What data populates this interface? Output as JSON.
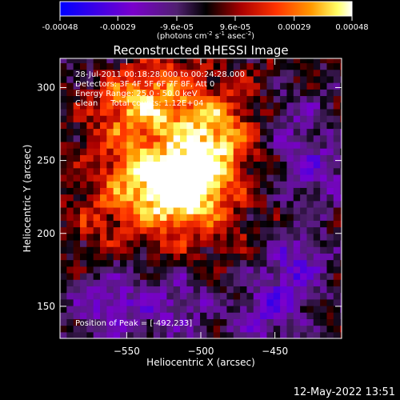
{
  "colorbar": {
    "tick_labels": [
      "-0.00048",
      "-0.00029",
      "-9.6e-05",
      "9.6e-05",
      "0.00029",
      "0.00048"
    ],
    "tick_values": [
      -0.00048,
      -0.00029,
      -9.6e-05,
      9.6e-05,
      0.00029,
      0.00048
    ],
    "range": [
      -0.00048,
      0.00048
    ],
    "units_parts": [
      "(photons cm",
      "-2",
      " s",
      "-1",
      " asec",
      "-2",
      ")"
    ]
  },
  "chart_data": {
    "type": "heatmap",
    "title": "Reconstructed RHESSI Image",
    "xlabel": "Heliocentric X (arcsec)",
    "ylabel": "Heliocentric Y (arcsec)",
    "xlim": [
      -595,
      -405
    ],
    "ylim": [
      128,
      320
    ],
    "x_ticks": [
      -550,
      -500,
      -450
    ],
    "x_tick_labels": [
      "−550",
      "−500",
      "−450"
    ],
    "y_ticks": [
      150,
      200,
      250,
      300
    ],
    "y_tick_labels": [
      "150",
      "200",
      "250",
      "300"
    ],
    "annotations": [
      "28-Jul-2011 00:18:28.000 to 00:24:28.000",
      "Detectors: 3F 4F 5F 6F 7F 8F, Att 0",
      "Energy Range: 25.0 - 50.0 keV",
      "Clean     Total counts: 1.12E+04"
    ],
    "peak_label": "Position of Peak = [-492,233]",
    "peak": [
      -492,
      233
    ],
    "colormap": [
      "#0000ff",
      "#6600cc",
      "#5a2a9c",
      "#000000",
      "#aa0000",
      "#ff3300",
      "#ff9900",
      "#ffff66",
      "#ffffff"
    ],
    "emission_sources": [
      {
        "x": -505,
        "y": 233,
        "value": 0.00044
      },
      {
        "x": -528,
        "y": 228,
        "value": 0.0003
      },
      {
        "x": -552,
        "y": 240,
        "value": 0.0002
      },
      {
        "x": -500,
        "y": 270,
        "value": 0.00026
      },
      {
        "x": -540,
        "y": 280,
        "value": 0.00022
      },
      {
        "x": -560,
        "y": 292,
        "value": 0.00018
      },
      {
        "x": -522,
        "y": 300,
        "value": 0.00016
      },
      {
        "x": -485,
        "y": 262,
        "value": 0.00014
      },
      {
        "x": -570,
        "y": 205,
        "value": 0.00012
      },
      {
        "x": -520,
        "y": 205,
        "value": 0.00011
      },
      {
        "x": -478,
        "y": 190,
        "value": 7e-05
      },
      {
        "x": -460,
        "y": 295,
        "value": 6e-05
      }
    ],
    "negative_sources": [
      {
        "x": -440,
        "y": 175,
        "value": -0.00024
      },
      {
        "x": -425,
        "y": 240,
        "value": -0.0002
      },
      {
        "x": -565,
        "y": 150,
        "value": -0.00022
      },
      {
        "x": -520,
        "y": 150,
        "value": -0.00018
      },
      {
        "x": -460,
        "y": 140,
        "value": -0.0002
      },
      {
        "x": -440,
        "y": 280,
        "value": -0.00016
      },
      {
        "x": -575,
        "y": 315,
        "value": -0.0001
      }
    ]
  },
  "footer": {
    "date": "12-May-2022 13:51"
  }
}
